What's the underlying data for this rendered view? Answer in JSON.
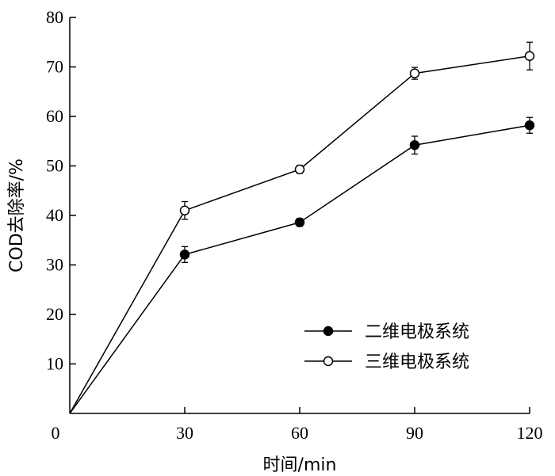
{
  "chart_data": {
    "type": "line",
    "xlabel": "时间/min",
    "ylabel": "COD去除率/%",
    "x": [
      0,
      30,
      60,
      90,
      120
    ],
    "x_ticks": [
      "0",
      "30",
      "60",
      "90",
      "120"
    ],
    "y_ticks": [
      "10",
      "20",
      "30",
      "40",
      "50",
      "60",
      "70",
      "80"
    ],
    "xlim": [
      0,
      120
    ],
    "ylim": [
      0,
      80
    ],
    "grid": false,
    "legend_position": "lower-right",
    "series": [
      {
        "name": "二维电极系统",
        "marker": "filled-circle",
        "values": [
          0,
          32.1,
          38.6,
          54.2,
          58.2
        ],
        "errors": [
          0,
          1.6,
          0.8,
          1.8,
          1.6
        ]
      },
      {
        "name": "三维电极系统",
        "marker": "open-circle",
        "values": [
          0,
          41.0,
          49.3,
          68.7,
          72.2
        ],
        "errors": [
          0,
          1.8,
          0.8,
          1.2,
          2.8
        ]
      }
    ]
  }
}
